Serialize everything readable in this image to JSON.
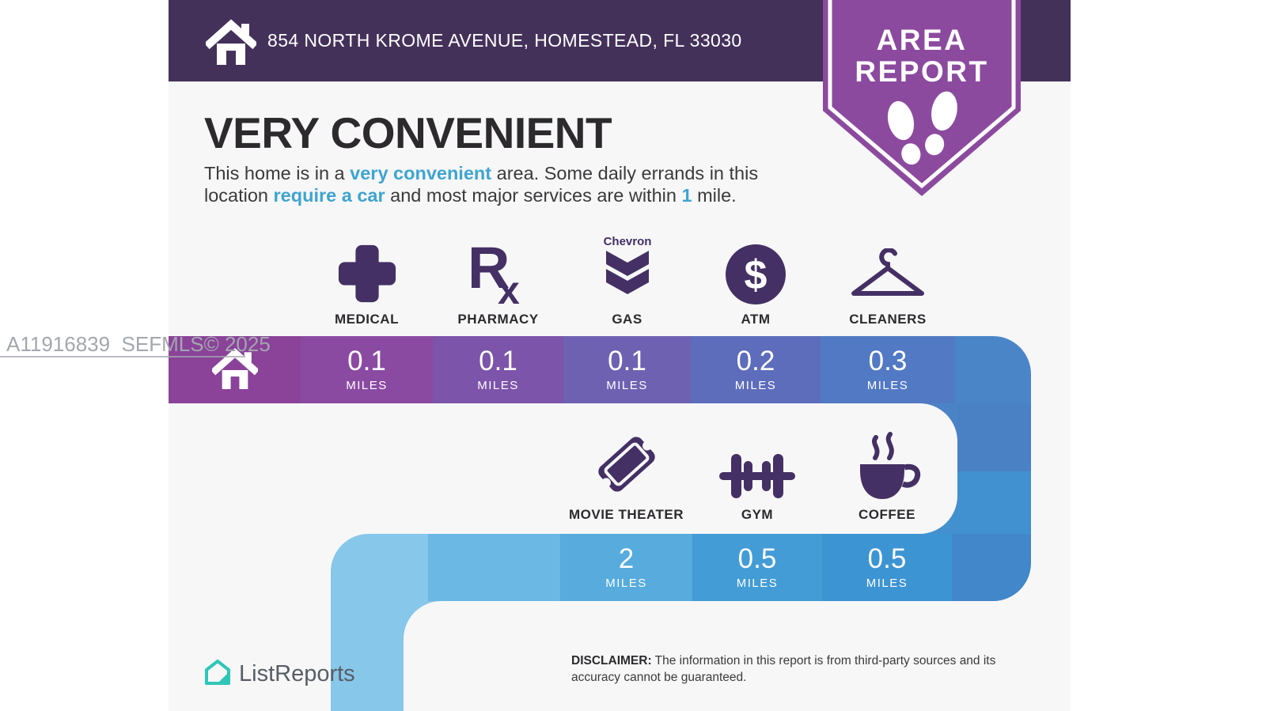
{
  "watermark": {
    "text": "A11916839  SEFMLS© 2025"
  },
  "header": {
    "address": "854 NORTH KROME AVENUE, HOMESTEAD, FL 33030",
    "home_icon": "home-icon"
  },
  "badge": {
    "line1": "AREA",
    "line2": "REPORT",
    "icon": "footprints-icon"
  },
  "headline": {
    "title": "VERY CONVENIENT",
    "description_segments": [
      {
        "text": "This home is in a ",
        "highlight": false
      },
      {
        "text": "very convenient",
        "highlight": true
      },
      {
        "text": " area. Some daily errands in this location ",
        "highlight": false
      },
      {
        "text": "require a car",
        "highlight": true
      },
      {
        "text": " and most major services are within ",
        "highlight": false
      },
      {
        "text": "1",
        "highlight": true
      },
      {
        "text": " mile.",
        "highlight": false
      }
    ]
  },
  "services": {
    "row1": [
      {
        "label": "MEDICAL",
        "icon": "medical-cross-icon",
        "distance": "0.1",
        "unit": "MILES"
      },
      {
        "label": "PHARMACY",
        "icon": "pharmacy-rx-icon",
        "distance": "0.1",
        "unit": "MILES"
      },
      {
        "label": "GAS",
        "icon": "gas-chevron-icon",
        "distance": "0.1",
        "unit": "MILES",
        "brand": "Chevron"
      },
      {
        "label": "ATM",
        "icon": "atm-dollar-icon",
        "distance": "0.2",
        "unit": "MILES"
      },
      {
        "label": "CLEANERS",
        "icon": "hanger-icon",
        "distance": "0.3",
        "unit": "MILES"
      }
    ],
    "row2": [
      {
        "label": "MOVIE THEATER",
        "icon": "movie-ticket-icon",
        "distance": "2",
        "unit": "MILES"
      },
      {
        "label": "GYM",
        "icon": "dumbbell-icon",
        "distance": "0.5",
        "unit": "MILES"
      },
      {
        "label": "COFFEE",
        "icon": "coffee-cup-icon",
        "distance": "0.5",
        "unit": "MILES"
      }
    ]
  },
  "colors": {
    "header_bg": "#44315a",
    "badge_bg": "#8b4a9e",
    "icon_purple": "#443064",
    "highlight_blue": "#3fa4cf",
    "content_bg": "#f7f7f8",
    "row1_home": "#8a4399",
    "row1_cells": [
      "#8a4aa2",
      "#7c54a9",
      "#6f61b2",
      "#5d6cbb",
      "#5279c3"
    ],
    "row1_trail": "#4a85c8",
    "right_strip_top": "#4a81c5",
    "right_strip_bottom": "#4190cf",
    "row2_lead": [
      "#87c7ea",
      "#6cb8e4"
    ],
    "row2_cells": [
      "#57abdd",
      "#439cd6",
      "#3d94d2"
    ],
    "row2_trail": "#4187c9",
    "brand_teal": "#2fc6b7"
  },
  "footer": {
    "brand": "ListReports",
    "brand_icon": "listreports-house-icon",
    "disclaimer_label": "DISCLAIMER:",
    "disclaimer_text": " The information in this report is from third-party sources and its accuracy cannot be guaranteed."
  }
}
